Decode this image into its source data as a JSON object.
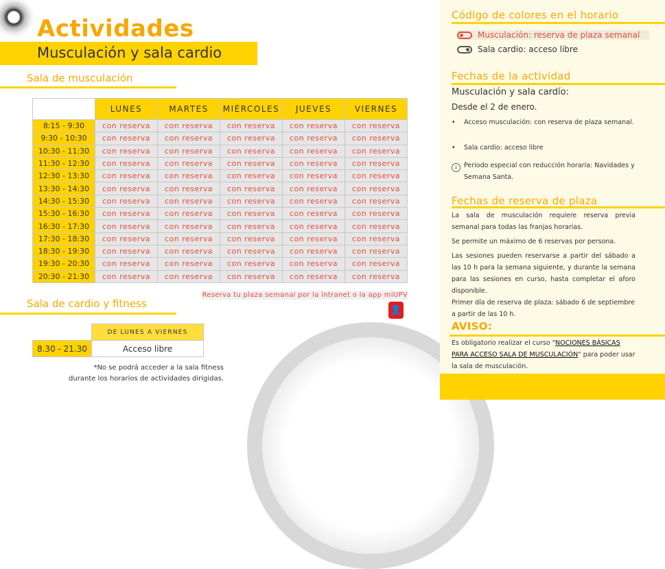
{
  "header": {
    "title": "Actividades",
    "subtitle": "Musculación y sala cardio"
  },
  "musculacion": {
    "heading": "Sala de musculación",
    "days": [
      "LUNES",
      "MARTES",
      "MIÉRCOLES",
      "JUEVES",
      "VIERNES"
    ],
    "slots": [
      "8:15 - 9:30",
      "9:30 - 10:30",
      "10:30 - 11:30",
      "11:30 - 12:30",
      "12:30 - 13:30",
      "13:30 - 14:30",
      "14:30 - 15:30",
      "15:30 - 16:30",
      "16:30 - 17:30",
      "17:30 - 18:30",
      "18:30 - 19:30",
      "19:30 - 20:30",
      "20:30 - 21:30"
    ],
    "cell_value": "con reserva",
    "intranet_note": "Reserva tu plaza semanal por la intranet o la app miUPV"
  },
  "cardio": {
    "heading": "Sala de cardio y fitness",
    "column": "DE LUNES A VIERNES",
    "time": "8.30 - 21.30",
    "value": "Acceso libre",
    "note1": "*No se podrá acceder a la sala fitness",
    "note2": "durante los horarios de actividades dirigidas."
  },
  "panel": {
    "colors_heading": "Código de colores en el horario",
    "legend": [
      {
        "label": "Musculación: reserva de plaza semanal",
        "color": "#e74c3c"
      },
      {
        "label": "Sala cardio: acceso libre",
        "color": "#555555"
      }
    ],
    "dates_heading": "Fechas de la actividad",
    "dates_sub": "Musculación y sala cardío:",
    "dates_from": "Desde el 2 de enero.",
    "bullets": [
      "Acceso musculación: con reserva de plaza semanal.",
      "Sala cardio: acceso libre"
    ],
    "info": "Periodo especial con reducción horaria: Navidades y Semana Santa.",
    "reserve_heading": "Fechas de reserva de plaza",
    "reserve_p": [
      "La sala de musculación requiere reserva previa semanal para todas las franjas horarias.",
      "Se permite un máximo de 6 reservas por persona.",
      "Las sesiones pueden reservarse a partir del sábado a las 10 h para la semana siguiente, y durante la semana para las sesiones en curso, hasta completar el aforo disponible.",
      "Primer día de reserva de plaza: sábado 6 de septiembre a partir de las 10 h."
    ],
    "aviso_heading": "AVISO:",
    "aviso_pre": "Es obligatorio realizar el curso \"",
    "aviso_link": "NOCIONES BÁSICAS PARA ACCESO SALA DE MUSCULACIÓN",
    "aviso_post": "\" para poder usar la sala de musculación."
  },
  "colors": {
    "accent": "#ffd200",
    "heading": "#f7a800",
    "reserve": "#e74c3c",
    "panel_bg": "#fdfae6"
  }
}
